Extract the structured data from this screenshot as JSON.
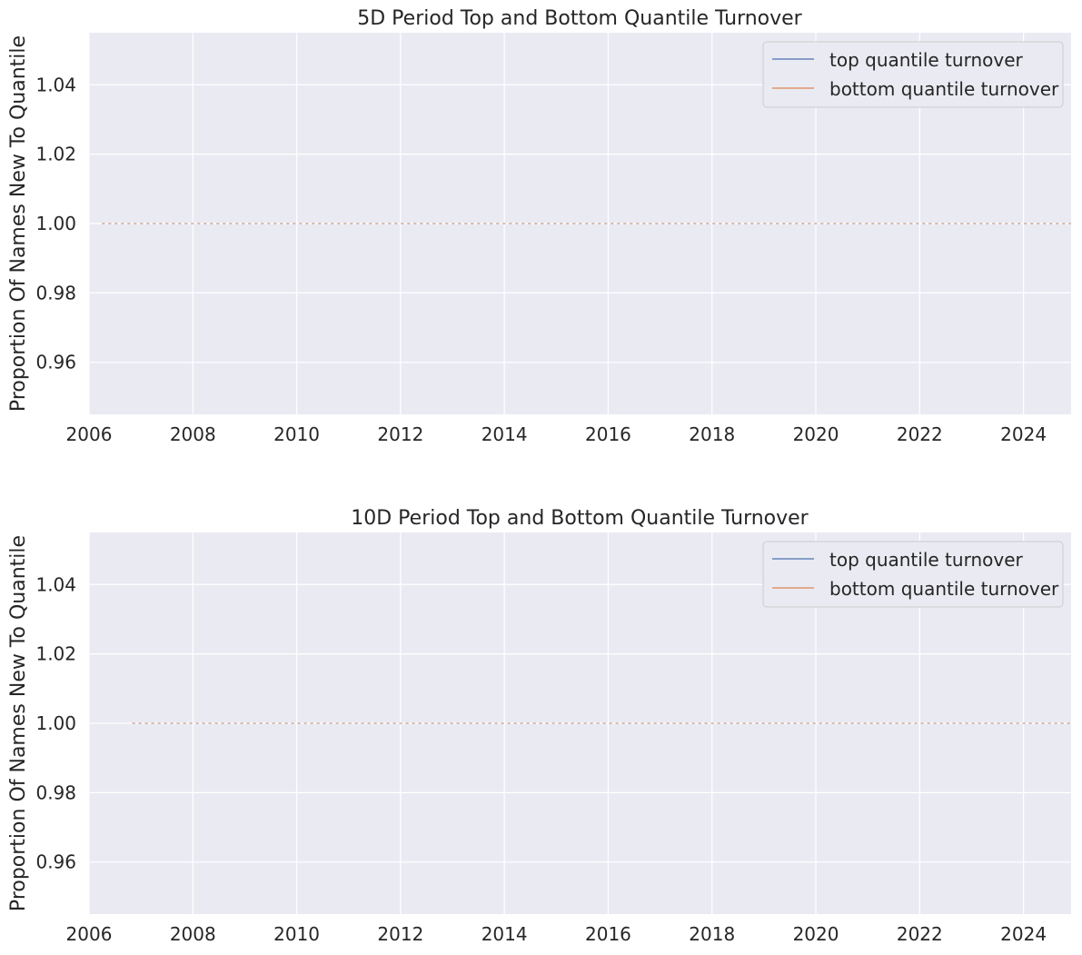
{
  "colors": {
    "background": "#eaeaf2",
    "grid": "#ffffff",
    "text": "#262626",
    "top_series": "#4c72b0",
    "bottom_series": "#dd8452",
    "legend_bg": "#eaeaf2",
    "legend_border": "#cccccc"
  },
  "chart_data": [
    {
      "type": "line",
      "title": "5D Period Top and Bottom Quantile Turnover",
      "xlabel": "",
      "ylabel": "Proportion Of Names New To Quantile",
      "xlim": [
        "2006-01-01",
        "2024-12-01"
      ],
      "ylim": [
        0.945,
        1.055
      ],
      "grid": true,
      "legend_position": "top-right",
      "xticks": [
        "2006",
        "2008",
        "2010",
        "2012",
        "2014",
        "2016",
        "2018",
        "2020",
        "2022",
        "2024"
      ],
      "yticks": [
        "0.96",
        "0.98",
        "1.00",
        "1.02",
        "1.04"
      ],
      "series": [
        {
          "name": "top quantile turnover",
          "x_range": [
            "2006-04-01",
            "2024-12-01"
          ],
          "value": 1.0
        },
        {
          "name": "bottom quantile turnover",
          "x_range": [
            "2006-04-01",
            "2024-12-01"
          ],
          "value": 1.0
        }
      ]
    },
    {
      "type": "line",
      "title": "10D Period Top and Bottom Quantile Turnover",
      "xlabel": "",
      "ylabel": "Proportion Of Names New To Quantile",
      "xlim": [
        "2006-01-01",
        "2024-12-01"
      ],
      "ylim": [
        0.945,
        1.055
      ],
      "grid": true,
      "legend_position": "top-right",
      "xticks": [
        "2006",
        "2008",
        "2010",
        "2012",
        "2014",
        "2016",
        "2018",
        "2020",
        "2022",
        "2024"
      ],
      "yticks": [
        "0.96",
        "0.98",
        "1.00",
        "1.02",
        "1.04"
      ],
      "series": [
        {
          "name": "top quantile turnover",
          "x_range": [
            "2006-11-01",
            "2024-12-01"
          ],
          "value": 1.0
        },
        {
          "name": "bottom quantile turnover",
          "x_range": [
            "2006-11-01",
            "2024-12-01"
          ],
          "value": 1.0
        }
      ]
    }
  ]
}
